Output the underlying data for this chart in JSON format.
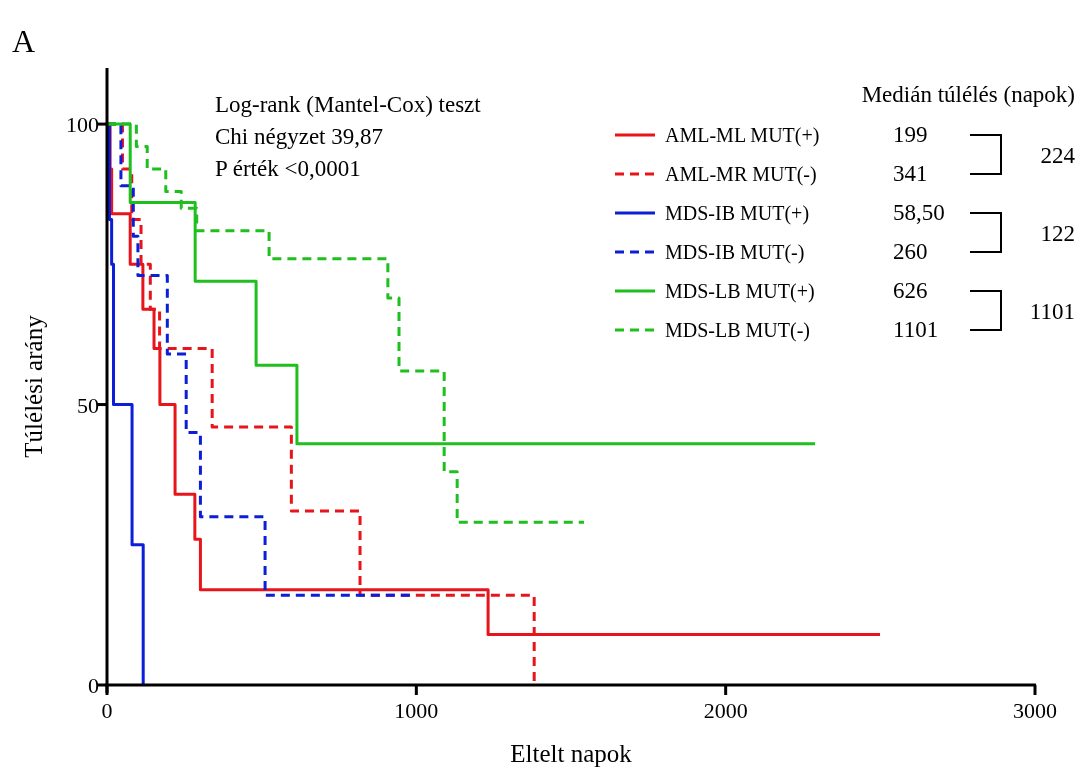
{
  "chart_data": {
    "type": "step",
    "xlabel": "Eltelt napok",
    "ylabel": "Túlélési arány",
    "xlim": [
      0,
      3000
    ],
    "xticks": [
      0,
      1000,
      2000,
      3000
    ],
    "ylim": [
      0,
      110
    ],
    "yticks": [
      0,
      50,
      100
    ],
    "grid": false,
    "legend": "top right",
    "marker": "none",
    "annotations": [
      "A",
      "Log-rank (Mantel-Cox) teszt",
      "Chi négyzet  39,87",
      "P érték   <0,0001",
      "Medián túlélés (napok)",
      "199",
      "341",
      "58,50",
      "260",
      "626",
      "1101",
      "224",
      "122",
      "1101"
    ],
    "series": [
      {
        "name": "AML-ML MUT(+)",
        "color": "#e8141b",
        "line_style": "solid",
        "x": [
          0,
          10,
          15,
          75,
          116,
          152,
          171,
          220,
          284,
          302,
          1232,
          2499
        ],
        "values": [
          100,
          92,
          84,
          75,
          67,
          60,
          50,
          34,
          26,
          17,
          9,
          9
        ]
      },
      {
        "name": "AML-MR MUT(-)",
        "color": "#e8141b",
        "line_style": "dashed",
        "x": [
          0,
          50,
          80,
          110,
          140,
          170,
          340,
          596,
          818,
          1381
        ],
        "values": [
          100,
          92,
          83,
          75,
          67,
          60,
          46,
          31,
          16,
          0
        ]
      },
      {
        "name": "MDS-IB MUT(+)",
        "color": "#0a1fd6",
        "line_style": "solid",
        "x": [
          0,
          8,
          15,
          21,
          81,
          117
        ],
        "values": [
          100,
          83,
          75,
          50,
          25,
          0
        ]
      },
      {
        "name": "MDS-IB MUT(-)",
        "color": "#0a1fd6",
        "line_style": "dashed",
        "x": [
          0,
          45,
          85,
          100,
          195,
          256,
          302,
          511,
          986
        ],
        "values": [
          100,
          89,
          80,
          73,
          59,
          45,
          30,
          16,
          16
        ]
      },
      {
        "name": "MDS-LB MUT(+)",
        "color": "#1fbf1f",
        "line_style": "solid",
        "x": [
          0,
          75,
          285,
          482,
          614,
          2289
        ],
        "values": [
          100,
          86,
          72,
          57,
          43,
          43
        ]
      },
      {
        "name": "MDS-LB MUT(-)",
        "color": "#1fbf1f",
        "line_style": "dashed",
        "x": [
          0,
          95,
          130,
          190,
          240,
          290,
          524,
          908,
          944,
          1090,
          1132,
          1542
        ],
        "values": [
          100,
          96,
          92,
          88,
          85,
          81,
          76,
          69,
          56,
          38,
          29,
          29
        ]
      }
    ]
  }
}
